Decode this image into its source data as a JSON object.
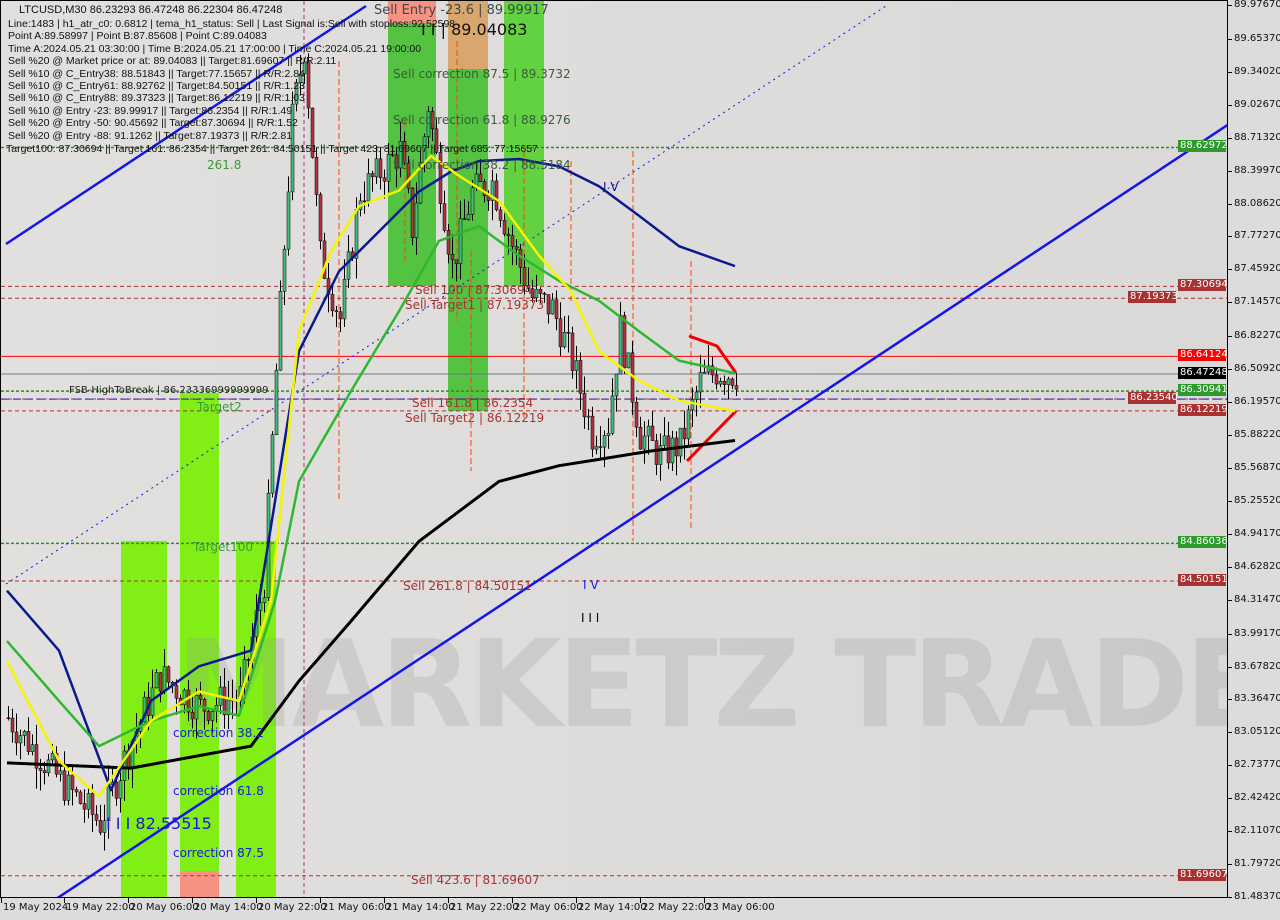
{
  "header": {
    "symbol_line": "LTCUSD,M30  86.23293 86.47248 86.22304 86.47248",
    "info_lines": [
      "Line:1483 | h1_atr_c0: 0.6812 | tema_h1_status: Sell | Last Signal is:Sell with stoploss:92.52598",
      "Point A:89.58997 | Point B:87.85608 | Point C:89.04083",
      "Time A:2024.05.21 03:30:00 | Time B:2024.05.21 17:00:00 | Time C:2024.05.21 19:00:00",
      "Sell %20 @ Market price or at: 89.04083 || Target:81.69607 || R/R:2.11",
      "Sell %10 @ C_Entry38: 88.51843 || Target:77.15657 || R/R:2.84",
      "Sell %10 @ C_Entry61: 88.92762 || Target:84.50151 || R/R:1.23",
      "Sell %10 @ C_Entry88: 89.37323 || Target:86.12219 || R/R:1.03",
      "Sell %10 @ Entry -23: 89.99917 || Target:86.2354 || R/R:1.49",
      "Sell %20 @ Entry -50: 90.45692 || Target:87.30694 || R/R:1.52",
      "Sell %20 @ Entry -88: 91.1262 || Target:87.19373 || R/R:2.81"
    ],
    "targets_line": "Target100: 87.30694 || Target 161: 86.2354 || Target 261: 84.50151 || Target 423: 81.69607 || Target 685: 77.15657"
  },
  "annotations": {
    "sell_entry": "Sell Entry -23.6 | 89.99917",
    "point_c": "I I | 89.04083",
    "corr875": "Sell correction 87.5 | 89.3732",
    "corr618": "Sell correction 61.8 | 88.9276",
    "corr382": "Sell correction 38.2 | 88.5184",
    "fib2618_top": "261.8",
    "sell100": "Sell 100 | 87.30694",
    "target1": "Sell Target1 | 87.19373",
    "fsb": "FSB-HighToBreak | 86.23336999999999",
    "target2_green": "Target2",
    "sell1618": "Sell 161.8 | 86.2354",
    "target2": "Sell Target2 | 86.12219",
    "target100_green": "Target100",
    "sell2618": "Sell 261.8 | 84.50151",
    "wave_iv_low": "I V",
    "wave_iii": "I I I",
    "wave_iv_top": "I V",
    "buy_corr382": "correction 38.2",
    "buy_corr618": "correction 61.8",
    "buy_point": "I I I 82.55515",
    "buy_corr875": "correction 87.5",
    "sell4236": "Sell 423.6 | 81.69607",
    "watermark": "MARKETZ TRADE"
  },
  "chart_data": {
    "type": "candlestick",
    "symbol": "LTCUSD",
    "timeframe": "M30",
    "ylim": [
      81.4837,
      89.9767
    ],
    "y_ticks": [
      "89.97670",
      "89.65370",
      "89.34020",
      "89.02670",
      "88.71320",
      "88.39970",
      "88.08620",
      "87.77270",
      "87.45920",
      "87.14570",
      "86.82270",
      "86.50920",
      "86.19570",
      "85.88220",
      "85.56870",
      "85.25520",
      "84.94170",
      "84.62820",
      "84.31470",
      "83.99170",
      "83.67820",
      "83.36470",
      "83.05120",
      "82.73770",
      "82.42420",
      "82.11070",
      "81.79720",
      "81.48370"
    ],
    "x_ticks": [
      "19 May 2024",
      "19 May 22:00",
      "20 May 06:00",
      "20 May 14:00",
      "20 May 22:00",
      "21 May 06:00",
      "21 May 14:00",
      "21 May 22:00",
      "22 May 06:00",
      "22 May 14:00",
      "22 May 22:00",
      "23 May 06:00"
    ],
    "price_path": [
      [
        "2024-05-19 14:30",
        83.2
      ],
      [
        "2024-05-19 21:00",
        82.6
      ],
      [
        "2024-05-20 02:00",
        82.2
      ],
      [
        "2024-05-20 06:00",
        83.0
      ],
      [
        "2024-05-20 09:30",
        83.6
      ],
      [
        "2024-05-20 14:30",
        83.3
      ],
      [
        "2024-05-20 19:30",
        83.4
      ],
      [
        "2024-05-20 22:30",
        84.5
      ],
      [
        "2024-05-21 00:00",
        86.5
      ],
      [
        "2024-05-21 02:00",
        88.9
      ],
      [
        "2024-05-21 03:30",
        89.59
      ],
      [
        "2024-05-21 05:30",
        87.6
      ],
      [
        "2024-05-21 08:00",
        87.0
      ],
      [
        "2024-05-21 10:30",
        88.2
      ],
      [
        "2024-05-21 13:00",
        88.4
      ],
      [
        "2024-05-21 15:30",
        88.6
      ],
      [
        "2024-05-21 17:00",
        87.86
      ],
      [
        "2024-05-21 19:00",
        89.04
      ],
      [
        "2024-05-21 22:00",
        87.5
      ],
      [
        "2024-05-22 00:30",
        88.2
      ],
      [
        "2024-05-22 03:00",
        88.3
      ],
      [
        "2024-05-22 05:30",
        87.7
      ],
      [
        "2024-05-22 08:00",
        87.2
      ],
      [
        "2024-05-22 10:30",
        87.1
      ],
      [
        "2024-05-22 13:00",
        86.6
      ],
      [
        "2024-05-22 15:30",
        85.9
      ],
      [
        "2024-05-22 17:30",
        86.0
      ],
      [
        "2024-05-22 19:00",
        86.9
      ],
      [
        "2024-05-22 21:30",
        85.9
      ],
      [
        "2024-05-23 00:00",
        85.7
      ],
      [
        "2024-05-23 02:30",
        85.8
      ],
      [
        "2024-05-23 05:00",
        86.4
      ],
      [
        "2024-05-23 07:00",
        86.5
      ],
      [
        "2024-05-23 09:30",
        86.47
      ]
    ],
    "lines": [
      {
        "color": "#000000",
        "points": [
          [
            "2024-05-19 14:30",
            82.77
          ],
          [
            "2024-05-20 06:00",
            82.72
          ],
          [
            "2024-05-20 21:00",
            82.93
          ],
          [
            "2024-05-21 03:00",
            83.55
          ],
          [
            "2024-05-21 09:30",
            84.12
          ],
          [
            "2024-05-21 18:00",
            84.88
          ],
          [
            "2024-05-22 04:00",
            85.45
          ],
          [
            "2024-05-22 11:30",
            85.6
          ],
          [
            "2024-05-22 16:30",
            85.66
          ],
          [
            "2024-05-22 23:00",
            85.74
          ],
          [
            "2024-05-23 09:30",
            85.84
          ]
        ]
      },
      {
        "color": "#0a1a8c",
        "points": [
          [
            "2024-05-19 14:30",
            84.41
          ],
          [
            "2024-05-19 21:00",
            83.84
          ],
          [
            "2024-05-20 03:30",
            82.51
          ],
          [
            "2024-05-20 08:30",
            83.36
          ],
          [
            "2024-05-20 14:30",
            83.69
          ],
          [
            "2024-05-20 21:00",
            83.84
          ],
          [
            "2024-05-21 00:00",
            85.26
          ],
          [
            "2024-05-21 03:00",
            86.69
          ],
          [
            "2024-05-21 08:00",
            87.45
          ],
          [
            "2024-05-21 13:00",
            87.83
          ],
          [
            "2024-05-21 18:00",
            88.21
          ],
          [
            "2024-05-21 22:00",
            88.4
          ],
          [
            "2024-05-22 01:30",
            88.5
          ],
          [
            "2024-05-22 06:30",
            88.52
          ],
          [
            "2024-05-22 11:30",
            88.45
          ],
          [
            "2024-05-22 16:30",
            88.26
          ],
          [
            "2024-05-22 21:30",
            87.98
          ],
          [
            "2024-05-23 02:30",
            87.69
          ],
          [
            "2024-05-23 09:30",
            87.5
          ]
        ]
      },
      {
        "color": "#2fb82f",
        "points": [
          [
            "2024-05-19 14:30",
            83.93
          ],
          [
            "2024-05-19 21:00",
            83.36
          ],
          [
            "2024-05-20 02:00",
            82.93
          ],
          [
            "2024-05-20 08:30",
            83.17
          ],
          [
            "2024-05-20 14:30",
            83.31
          ],
          [
            "2024-05-20 19:30",
            83.22
          ],
          [
            "2024-05-21 00:00",
            84.31
          ],
          [
            "2024-05-21 03:00",
            85.45
          ],
          [
            "2024-05-21 09:30",
            86.31
          ],
          [
            "2024-05-21 15:30",
            87.07
          ],
          [
            "2024-05-21 20:30",
            87.74
          ],
          [
            "2024-05-22 01:30",
            87.88
          ],
          [
            "2024-05-22 06:30",
            87.6
          ],
          [
            "2024-05-22 11:30",
            87.36
          ],
          [
            "2024-05-22 16:30",
            87.17
          ],
          [
            "2024-05-22 21:30",
            86.88
          ],
          [
            "2024-05-23 02:30",
            86.6
          ],
          [
            "2024-05-23 09:30",
            86.48
          ]
        ]
      },
      {
        "color": "#f5f500",
        "points": [
          [
            "2024-05-19 14:30",
            83.74
          ],
          [
            "2024-05-19 21:00",
            82.79
          ],
          [
            "2024-05-20 02:00",
            82.45
          ],
          [
            "2024-05-20 08:30",
            83.17
          ],
          [
            "2024-05-20 14:30",
            83.45
          ],
          [
            "2024-05-20 19:30",
            83.36
          ],
          [
            "2024-05-20 23:30",
            84.31
          ],
          [
            "2024-05-21 03:00",
            86.88
          ],
          [
            "2024-05-21 07:00",
            87.64
          ],
          [
            "2024-05-21 10:30",
            88.07
          ],
          [
            "2024-05-21 15:30",
            88.22
          ],
          [
            "2024-05-21 19:30",
            88.55
          ],
          [
            "2024-05-21 23:00",
            88.36
          ],
          [
            "2024-05-22 04:00",
            88.12
          ],
          [
            "2024-05-22 09:00",
            87.6
          ],
          [
            "2024-05-22 13:00",
            87.26
          ],
          [
            "2024-05-22 16:30",
            86.69
          ],
          [
            "2024-05-22 21:30",
            86.41
          ],
          [
            "2024-05-23 02:30",
            86.22
          ],
          [
            "2024-05-23 09:30",
            86.12
          ]
        ]
      }
    ],
    "levels": [
      {
        "price": "88.62972",
        "color": "#2e8b2e",
        "style": "dotted"
      },
      {
        "price": "87.30694",
        "color": "#a83232",
        "style": "dashed"
      },
      {
        "price": "87.19373",
        "color": "#a83232",
        "style": "dashed"
      },
      {
        "price": "86.64124",
        "color": "#ff0000",
        "style": "solid"
      },
      {
        "price": "86.47248",
        "color": "#000000",
        "style": "solid-grey"
      },
      {
        "price": "86.30941",
        "color": "#2e8b2e",
        "style": "dotted"
      },
      {
        "price": "86.23540",
        "color": "#a83232",
        "style": "dashed"
      },
      {
        "price": "86.12219",
        "color": "#a83232",
        "style": "dashed"
      },
      {
        "price": "84.86036",
        "color": "#2e8b2e",
        "style": "dotted"
      },
      {
        "price": "84.50151",
        "color": "#a83232",
        "style": "dashed"
      },
      {
        "price": "81.69607",
        "color": "#a83232",
        "style": "dashed"
      }
    ]
  }
}
